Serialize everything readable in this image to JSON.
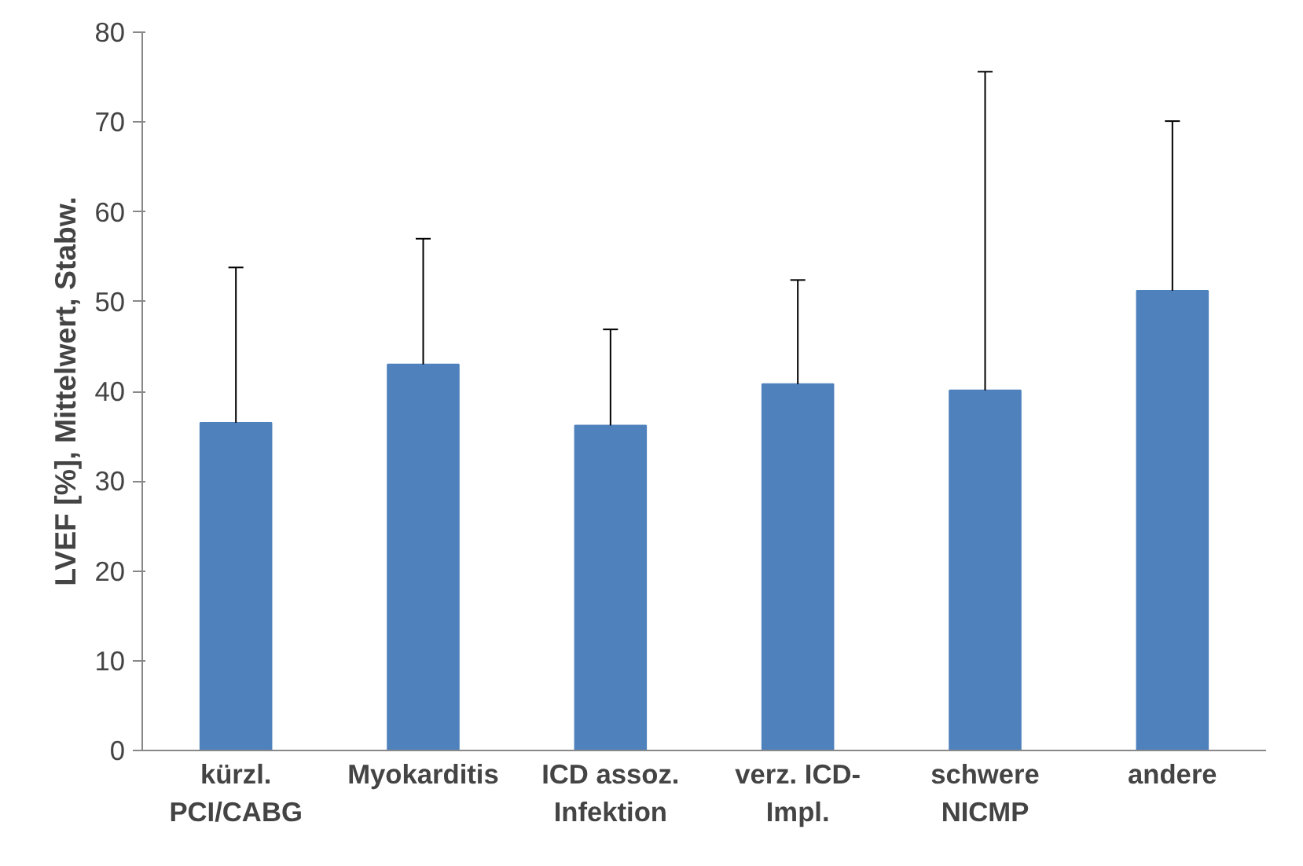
{
  "chart_data": {
    "type": "bar",
    "ylabel": "LVEF [%], Mittelwert, Stabw.",
    "categories": [
      "kürzl.\nPCI/CABG",
      "Myokarditis",
      "ICD assoz.\nInfektion",
      "verz. ICD-\nImpl.",
      "schwere\nNICMP",
      "andere"
    ],
    "values": [
      36.5,
      43.0,
      36.2,
      40.8,
      40.1,
      51.2
    ],
    "errors": [
      [
        36.5,
        53.8
      ],
      [
        43.0,
        57.0
      ],
      [
        36.2,
        46.9
      ],
      [
        40.8,
        52.4
      ],
      [
        40.1,
        75.6
      ],
      [
        51.2,
        70.1
      ]
    ],
    "color": "#4f81bd",
    "ylim": [
      0,
      80
    ],
    "yticks": [
      0,
      10,
      20,
      30,
      40,
      50,
      60,
      70,
      80
    ],
    "grid": false
  }
}
